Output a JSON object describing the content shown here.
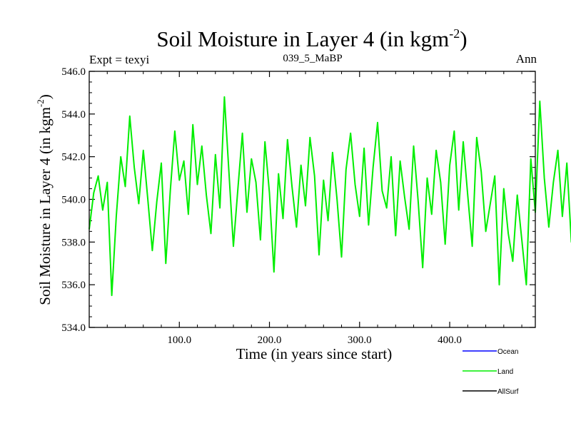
{
  "chart_data": {
    "type": "line",
    "title": "Soil Moisture in Layer 4 (in kgm",
    "title_superscript": "-2",
    "title_suffix": ")",
    "subtitle_left": "Expt = texyi",
    "subtitle_center": "039_5_MaBP",
    "subtitle_right": "Ann",
    "xlabel": "Time (in years since start)",
    "ylabel": "Soil Moisture in Layer 4 (in kgm",
    "ylabel_superscript": "-2",
    "ylabel_suffix": ")",
    "xlim": [
      0,
      495
    ],
    "ylim": [
      534.0,
      546.0
    ],
    "x_ticks": [
      100,
      200,
      300,
      400
    ],
    "x_tick_labels": [
      "100.0",
      "200.0",
      "300.0",
      "400.0"
    ],
    "y_ticks": [
      534,
      536,
      538,
      540,
      542,
      544,
      546
    ],
    "y_tick_labels": [
      "534.0",
      "536.0",
      "538.0",
      "540.0",
      "542.0",
      "544.0",
      "546.0"
    ],
    "grid": false,
    "legend_position": "bottom-right",
    "legend": [
      {
        "name": "Ocean",
        "color": "#0000ff"
      },
      {
        "name": "Land",
        "color": "#00ee00"
      },
      {
        "name": "AllSurf",
        "color": "#000000"
      }
    ],
    "series": [
      {
        "name": "Land",
        "color": "#00ee00",
        "x_start": 0,
        "x_step": 5,
        "values": [
          538.6,
          540.3,
          541.1,
          539.5,
          540.8,
          535.5,
          539.2,
          542.0,
          540.6,
          543.9,
          541.5,
          539.8,
          542.3,
          540.0,
          537.6,
          539.9,
          541.7,
          537.0,
          540.4,
          543.2,
          540.9,
          541.8,
          539.3,
          543.5,
          540.7,
          542.5,
          540.2,
          538.4,
          542.1,
          539.6,
          544.8,
          541.3,
          537.8,
          540.5,
          543.1,
          539.4,
          541.9,
          540.8,
          538.1,
          542.7,
          540.3,
          536.6,
          541.2,
          539.1,
          542.8,
          540.6,
          538.7,
          541.6,
          539.7,
          542.9,
          541.1,
          537.4,
          540.9,
          539.0,
          542.2,
          540.0,
          537.3,
          541.4,
          543.1,
          540.7,
          539.2,
          542.4,
          538.8,
          541.5,
          543.6,
          540.4,
          539.6,
          542.0,
          538.3,
          541.8,
          540.1,
          538.6,
          542.5,
          539.9,
          536.8,
          541.0,
          539.3,
          542.3,
          540.8,
          537.9,
          541.6,
          543.2,
          539.5,
          542.7,
          540.2,
          537.8,
          542.9,
          541.3,
          538.5,
          539.8,
          541.1,
          536.0,
          540.5,
          538.4,
          537.1,
          540.2,
          538.1,
          536.0,
          541.9,
          539.4,
          544.6,
          541.0,
          538.7,
          540.8,
          542.3,
          539.2,
          541.7,
          538.0,
          540.6,
          543.2,
          540.1,
          538.9,
          541.8,
          539.6,
          538.5,
          540.4,
          536.8,
          539.7,
          542.1,
          538.3,
          540.9,
          537.2,
          535.8,
          539.0,
          541.3,
          538.8,
          540.2,
          537.5,
          539.6,
          536.1,
          538.4,
          534.6,
          539.1,
          541.4,
          538.6,
          540.0,
          542.6,
          539.8,
          541.7,
          538.9,
          540.6,
          543.0,
          539.7,
          542.1,
          540.3,
          538.2,
          541.5,
          544.4,
          542.0,
          539.6,
          541.9,
          540.5,
          543.3,
          540.9,
          538.8,
          542.4,
          540.2,
          539.0,
          541.6,
          543.1,
          540.7,
          542.8,
          541.2,
          539.5,
          542.3,
          540.6,
          537.5,
          541.0,
          540.5,
          535.2,
          540.3,
          539.0,
          541.9,
          541.7,
          542.8,
          543.5,
          542.1,
          538.2,
          541.5,
          539.1
        ]
      },
      {
        "name": "AllSurf",
        "color": "#000000",
        "values": []
      },
      {
        "name": "Ocean",
        "color": "#0000ff",
        "values": []
      }
    ]
  }
}
